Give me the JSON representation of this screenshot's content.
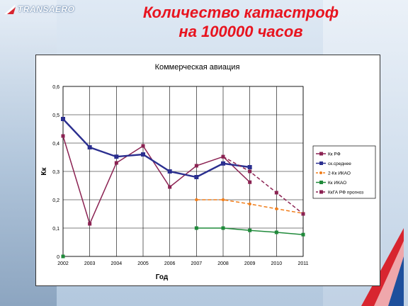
{
  "header": {
    "logo_text": "TRANSAERO",
    "title_line1": "Количество катастроф",
    "title_line2": "на 100000 часов"
  },
  "colors": {
    "title": "#e8141f",
    "series_kk_rf": "#8b2252",
    "series_average": "#2b2f8f",
    "series_2kk_ikao": "#f07d1a",
    "series_kk_ikao": "#1f8a3a",
    "series_kkga_forecast": "#8b2252"
  },
  "chart_data": {
    "type": "line",
    "title": "Коммерческая авиация",
    "xlabel": "Год",
    "ylabel": "Кк",
    "ylim": [
      0,
      0.6
    ],
    "yticks": [
      "0",
      "0,1",
      "0,2",
      "0,3",
      "0,4",
      "0,5",
      "0,6"
    ],
    "x": [
      "2002",
      "2003",
      "2004",
      "2005",
      "2006",
      "2007",
      "2008",
      "2009",
      "2010",
      "2011"
    ],
    "grid": true,
    "legend_position": "right",
    "series": [
      {
        "name": "Кк РФ",
        "style": "solid",
        "marker": "square",
        "values": [
          0.425,
          0.115,
          0.33,
          0.39,
          0.245,
          0.32,
          0.352,
          0.262,
          null,
          null
        ]
      },
      {
        "name": "ск.среднее",
        "style": "solid-thick",
        "marker": "square",
        "values": [
          0.485,
          0.385,
          0.352,
          0.36,
          0.3,
          0.28,
          0.328,
          0.315,
          null,
          null
        ]
      },
      {
        "name": "2-Кк ИКАО",
        "style": "dashed",
        "marker": "circle",
        "values": [
          null,
          null,
          null,
          null,
          null,
          0.2,
          0.2,
          0.185,
          0.168,
          0.152
        ]
      },
      {
        "name": "Кк ИКАО",
        "style": "solid",
        "marker": "square",
        "values": [
          0.0,
          null,
          null,
          null,
          null,
          0.1,
          0.1,
          0.092,
          0.085,
          0.077
        ]
      },
      {
        "name": "КкГА РФ прогноз",
        "style": "dashed",
        "marker": "square",
        "values": [
          null,
          null,
          null,
          null,
          null,
          null,
          0.352,
          0.3,
          0.225,
          0.15
        ]
      }
    ]
  }
}
